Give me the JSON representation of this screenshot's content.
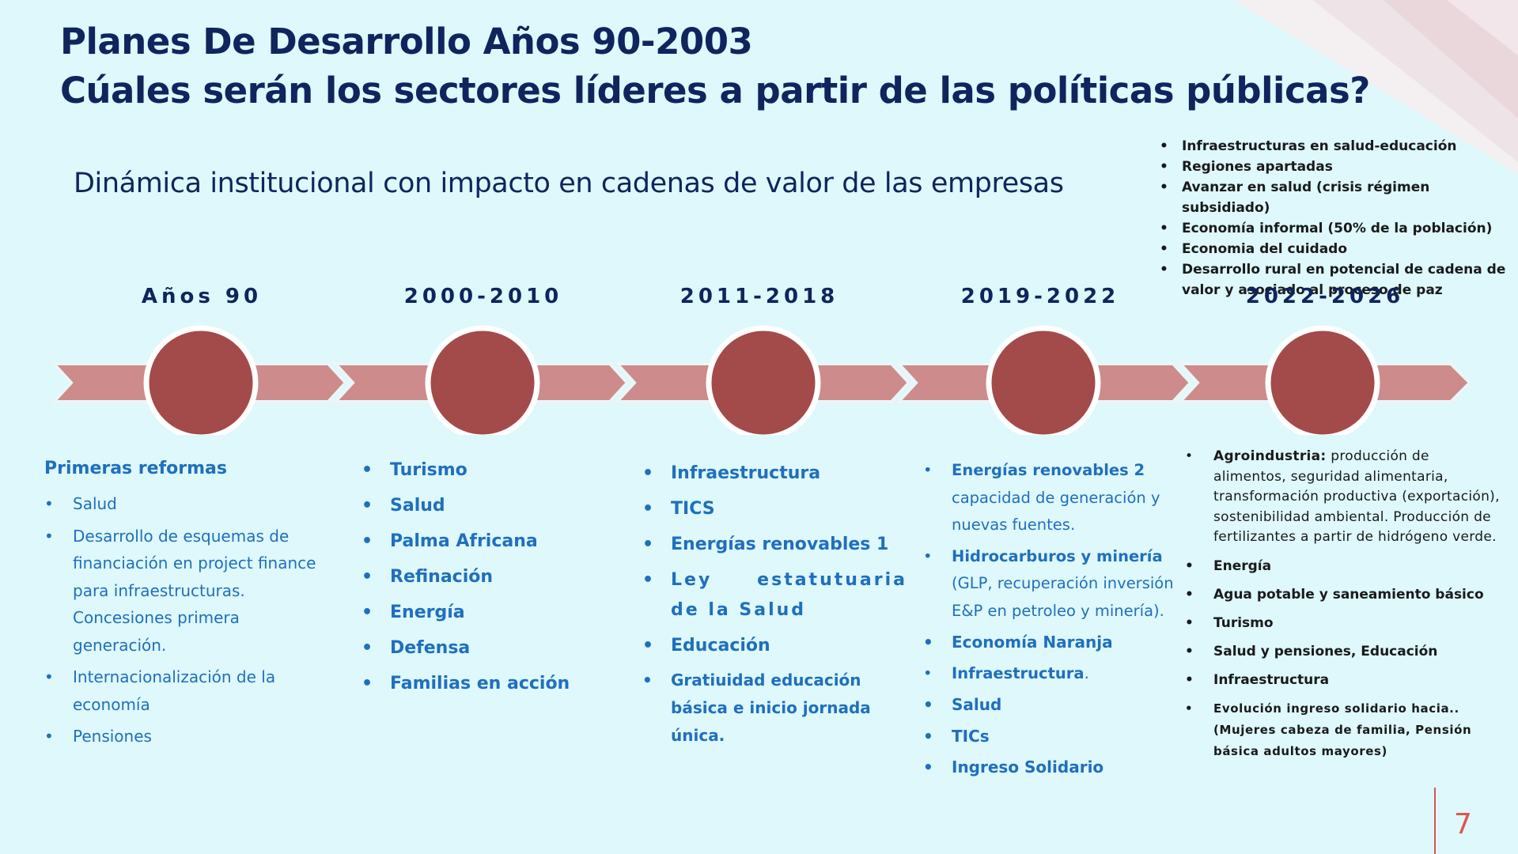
{
  "slide": {
    "title_line1": "Planes De Desarrollo Años 90-2003",
    "title_line2": "Cúales serán los sectores líderes a partir de las políticas públicas?",
    "subtitle": "Dinámica institucional con impacto en cadenas de valor de las empresas",
    "page_number": "7"
  },
  "top_notes": [
    "Infraestructuras en salud-educación",
    "Regiones apartadas",
    "Avanzar en salud (crisis régimen subsidiado)",
    "Economía informal (50% de la población)",
    "Economia del cuidado",
    "Desarrollo rural en potencial de cadena de valor y asociado al proceso de paz"
  ],
  "periods": [
    "Años 90",
    "2000-2010",
    "2011-2018",
    "2019-2022",
    "2022-2026"
  ],
  "col1": {
    "heading": "Primeras reformas",
    "items": [
      "Salud",
      "Desarrollo de esquemas de financiación en project finance para infraestructuras. Concesiones primera generación.",
      "Internacionalización de la economía",
      "Pensiones"
    ]
  },
  "col2": {
    "items": [
      "Turismo",
      "Salud",
      "Palma Africana",
      "Refinación",
      "Energía",
      "Defensa",
      "Familias en acción"
    ]
  },
  "col3": {
    "items": [
      "Infraestructura",
      "TICS",
      "Energías renovables 1",
      "Ley estatutuaria de la Salud",
      "Educación",
      "Gratiuidad educación básica e inicio jornada única."
    ]
  },
  "col4": {
    "item1_title": "Energías renovables 2",
    "item1_text": "capacidad de generación y nuevas fuentes.",
    "item2_title": "Hidrocarburos y minería",
    "item2_text": "(GLP, recuperación inversión E&P en petroleo y minería).",
    "item3": "Economía Naranja",
    "item4_title": "Infraestructura",
    "item4_text": ".",
    "item5": "Salud",
    "item6": "TICs",
    "item7": "Ingreso Solidario"
  },
  "col5": {
    "agro_title": "Agroindustria:",
    "agro_text": "producción de alimentos, seguridad alimentaria, transformación productiva (exportación), sostenibilidad ambiental. Producción de fertilizantes a partir de hidrógeno verde.",
    "items": [
      "Energía",
      "Agua potable y saneamiento básico",
      "Turismo",
      "Salud y pensiones, Educación",
      "Infraestructura",
      "Evolución ingreso solidario hacia.. (Mujeres cabeza de familia, Pensión básica adultos mayores)"
    ]
  },
  "colors": {
    "background": "#def8fb",
    "title": "#10245e",
    "arrow": "#cd8b8b",
    "circle": "#a34a4a",
    "bullet_text": "#1f6fbd",
    "page_number": "#e0554c"
  }
}
